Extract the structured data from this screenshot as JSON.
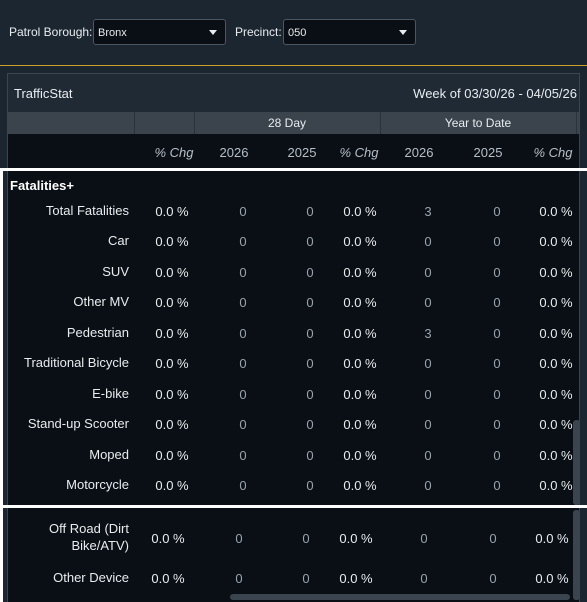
{
  "filters": {
    "borough_label": "Patrol Borough:",
    "borough_value": "Bronx",
    "precinct_label": "Precinct:",
    "precinct_value": "050"
  },
  "panel": {
    "title": "TrafficStat",
    "week": "Week of 03/30/26 - 04/05/26",
    "groups": [
      "28 Day",
      "Year to Date"
    ],
    "columns": [
      "% Chg",
      "2026",
      "2025",
      "% Chg",
      "2026",
      "2025",
      "% Chg"
    ]
  },
  "section": {
    "title": "Fatalities+"
  },
  "rows": [
    {
      "label": "Total Fatalities",
      "values": [
        "0.0 %",
        "0",
        "0",
        "0.0 %",
        "3",
        "0",
        "0.0 %"
      ]
    },
    {
      "label": "Car",
      "values": [
        "0.0 %",
        "0",
        "0",
        "0.0 %",
        "0",
        "0",
        "0.0 %"
      ]
    },
    {
      "label": "SUV",
      "values": [
        "0.0 %",
        "0",
        "0",
        "0.0 %",
        "0",
        "0",
        "0.0 %"
      ]
    },
    {
      "label": "Other MV",
      "values": [
        "0.0 %",
        "0",
        "0",
        "0.0 %",
        "0",
        "0",
        "0.0 %"
      ]
    },
    {
      "label": "Pedestrian",
      "values": [
        "0.0 %",
        "0",
        "0",
        "0.0 %",
        "3",
        "0",
        "0.0 %"
      ]
    },
    {
      "label": "Traditional Bicycle",
      "values": [
        "0.0 %",
        "0",
        "0",
        "0.0 %",
        "0",
        "0",
        "0.0 %"
      ]
    },
    {
      "label": "E-bike",
      "values": [
        "0.0 %",
        "0",
        "0",
        "0.0 %",
        "0",
        "0",
        "0.0 %"
      ]
    },
    {
      "label": "Stand-up Scooter",
      "values": [
        "0.0 %",
        "0",
        "0",
        "0.0 %",
        "0",
        "0",
        "0.0 %"
      ]
    },
    {
      "label": "Moped",
      "values": [
        "0.0 %",
        "0",
        "0",
        "0.0 %",
        "0",
        "0",
        "0.0 %"
      ]
    },
    {
      "label": "Motorcycle",
      "values": [
        "0.0 %",
        "0",
        "0",
        "0.0 %",
        "0",
        "0",
        "0.0 %"
      ]
    }
  ],
  "rows2": [
    {
      "label_line1": "Off Road (Dirt",
      "label_line2": "Bike/ATV)",
      "values": [
        "0.0 %",
        "0",
        "0",
        "0.0 %",
        "0",
        "0",
        "0.0 %"
      ]
    },
    {
      "label": "Other Device",
      "values": [
        "0.0 %",
        "0",
        "0",
        "0.0 %",
        "0",
        "0",
        "0.0 %"
      ]
    }
  ],
  "icons": {
    "dropdown": "chevron-down-icon"
  }
}
